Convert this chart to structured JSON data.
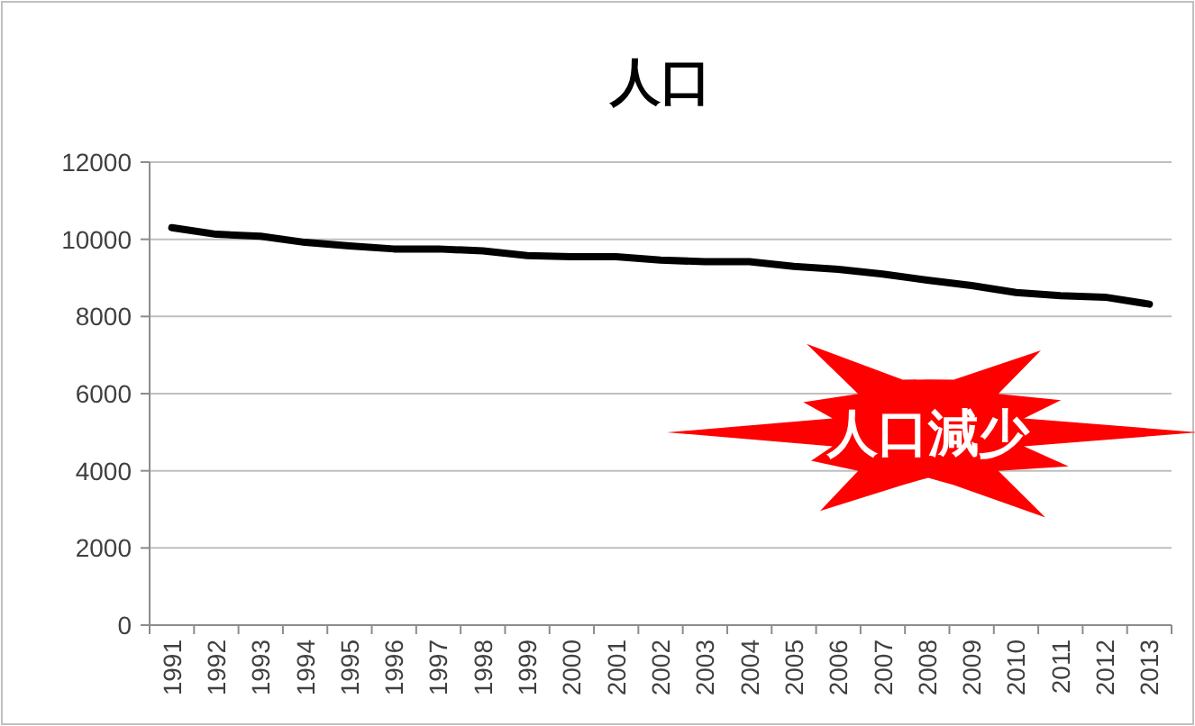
{
  "chart_data": {
    "type": "line",
    "title": "人口",
    "categories": [
      "1991",
      "1992",
      "1993",
      "1994",
      "1995",
      "1996",
      "1997",
      "1998",
      "1999",
      "2000",
      "2001",
      "2002",
      "2003",
      "2004",
      "2005",
      "2006",
      "2007",
      "2008",
      "2009",
      "2010",
      "2011",
      "2012",
      "2013"
    ],
    "series": [
      {
        "color": "#000000",
        "values": [
          10300,
          10130,
          10080,
          9920,
          9830,
          9750,
          9750,
          9700,
          9580,
          9550,
          9550,
          9460,
          9420,
          9420,
          9300,
          9220,
          9100,
          8940,
          8800,
          8620,
          8540,
          8500,
          8320
        ]
      }
    ],
    "ylim": [
      0,
      12000
    ],
    "yticks": [
      0,
      2000,
      4000,
      6000,
      8000,
      10000,
      12000
    ],
    "grid": "y",
    "marker": "none",
    "annotations": [
      "人口減少"
    ]
  }
}
